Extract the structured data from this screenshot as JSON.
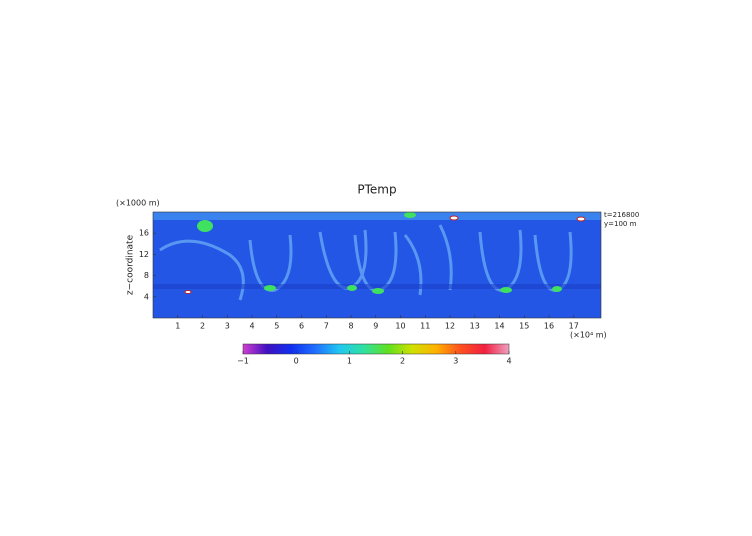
{
  "chart_data": {
    "type": "heatmap",
    "title": "PTemp",
    "y_label": "z−coordinate",
    "y_unit": "(×1000 m)",
    "x_unit": "(×10⁴ m)",
    "annotations": [
      "t=216800",
      "y=100 m"
    ],
    "xlim": [
      0,
      18.1
    ],
    "xticks": [
      1,
      2,
      3,
      4,
      5,
      6,
      7,
      8,
      9,
      10,
      11,
      12,
      13,
      14,
      15,
      16,
      17
    ],
    "ylim": [
      0,
      20
    ],
    "yticks": [
      4,
      8,
      12,
      16
    ],
    "colorbar": {
      "lim": [
        -1,
        4
      ],
      "ticks": [
        {
          "value": -1,
          "label": "−1"
        },
        0,
        1,
        2,
        3,
        4
      ],
      "colormap": [
        "#d040d0",
        "#4010c0",
        "#1030f0",
        "#2070ff",
        "#20c8f0",
        "#30e0a0",
        "#60e020",
        "#d0e000",
        "#ffb000",
        "#ff5020",
        "#f02040",
        "#f0a0c0"
      ]
    }
  }
}
